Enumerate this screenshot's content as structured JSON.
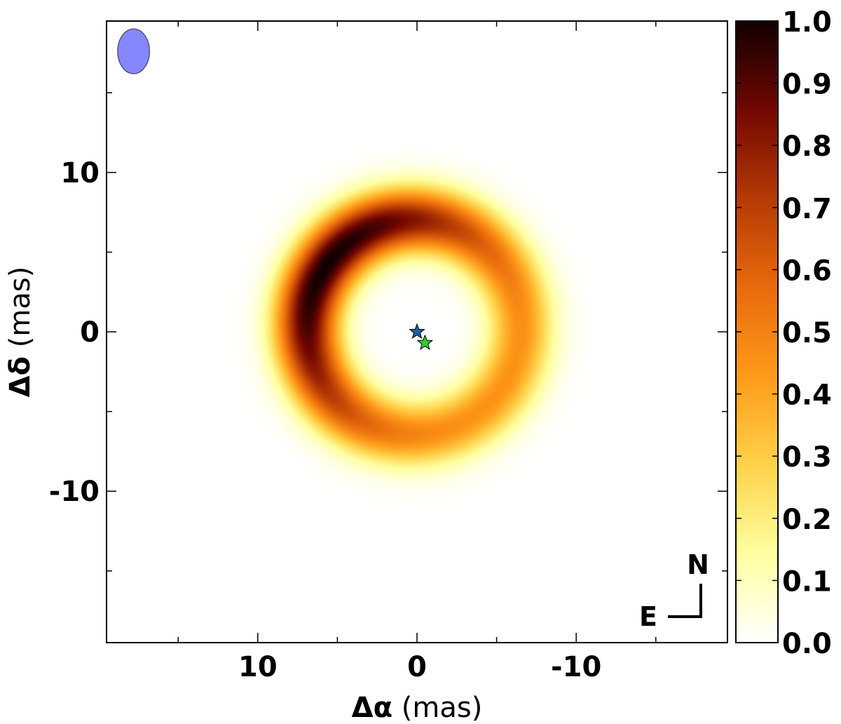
{
  "chart_data": {
    "type": "heatmap",
    "title": "",
    "xlabel_symbol": "Δα",
    "xlabel_unit": " (mas)",
    "ylabel_symbol": "Δδ",
    "ylabel_unit": " (mas)",
    "xlim": [
      19.5,
      -19.5
    ],
    "ylim": [
      -19.5,
      19.5
    ],
    "xticks": [
      {
        "value": 10,
        "label": "10"
      },
      {
        "value": 0,
        "label": "0"
      },
      {
        "value": -10,
        "label": "-10"
      }
    ],
    "yticks": [
      {
        "value": 10,
        "label": "10"
      },
      {
        "value": 0,
        "label": "0"
      },
      {
        "value": -10,
        "label": "-10"
      }
    ],
    "minor_tick_step": 5,
    "grid": false,
    "colormap": "afmhot_r",
    "colormap_stops": [
      "#ffffff",
      "#ffffa0",
      "#ffd24a",
      "#ff9a1a",
      "#e86a0c",
      "#b53a04",
      "#730600",
      "#100000"
    ],
    "colorbar": {
      "range": [
        0.0,
        1.0
      ],
      "ticks": [
        "0.0",
        "0.1",
        "0.2",
        "0.3",
        "0.4",
        "0.5",
        "0.6",
        "0.7",
        "0.8",
        "0.9",
        "1.0"
      ]
    },
    "ring": {
      "center": [
        0.2,
        0.3
      ],
      "radius_mas": 6.7,
      "width_sigma_mas": 1.4,
      "peak_position_angle_deg": 55,
      "contrast": 0.57,
      "min_level": 0.45
    },
    "beam": {
      "center": [
        17.8,
        17.6
      ],
      "major_mas": 2.6,
      "minor_mas": 2.0,
      "color": "#8080ff"
    },
    "markers": [
      {
        "name": "primary-star",
        "x": 0.0,
        "y": 0.0,
        "color": "#1f5fa0"
      },
      {
        "name": "secondary-star",
        "x": -0.5,
        "y": -0.7,
        "color": "#33cc33"
      }
    ],
    "compass": {
      "north_label": "N",
      "east_label": "E"
    }
  }
}
